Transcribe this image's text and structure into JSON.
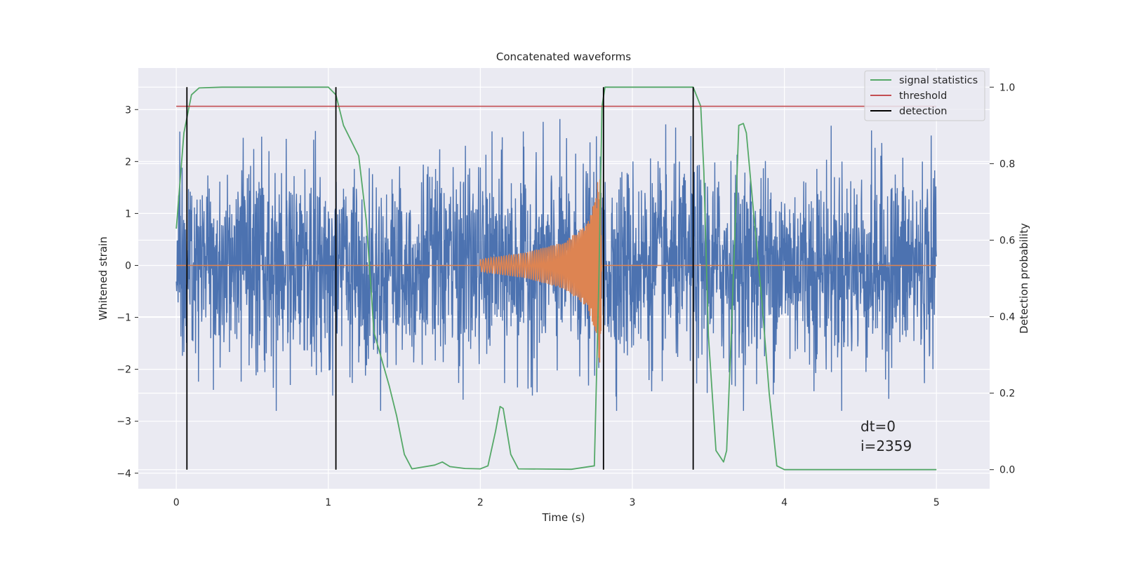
{
  "chart_data": {
    "type": "line",
    "title": "Concatenated waveforms",
    "xlabel": "Time (s)",
    "ylabel_left": "Whitened strain",
    "ylabel_right": "Detection probability",
    "xlim": [
      -0.25,
      5.35
    ],
    "ylim_left": [
      -4.3,
      3.8
    ],
    "ylim_right": [
      -0.05,
      1.05
    ],
    "x_ticks": [
      0,
      1,
      2,
      3,
      4,
      5
    ],
    "y_left_ticks": [
      -4,
      -3,
      -2,
      -1,
      0,
      1,
      2,
      3
    ],
    "y_right_ticks": [
      0.0,
      0.2,
      0.4,
      0.6,
      0.8,
      1.0
    ],
    "grid": true,
    "legend_position": "top-right",
    "background_color": "#eaeaf2",
    "series": [
      {
        "name": "",
        "kind": "noise",
        "axis": "left",
        "color": "#4c72b0",
        "x_range": [
          0,
          5
        ],
        "description_of_envelope": [
          -2.8,
          3.3
        ]
      },
      {
        "name": "",
        "kind": "chirp",
        "axis": "left",
        "color": "#dd8452",
        "points": [
          [
            0,
            0
          ],
          [
            1.99,
            0
          ],
          [
            2.0,
            0.12
          ],
          [
            2.3,
            0.25
          ],
          [
            2.55,
            0.45
          ],
          [
            2.7,
            0.8
          ],
          [
            2.76,
            1.3
          ],
          [
            2.79,
            2.1
          ],
          [
            2.8,
            0.0
          ],
          [
            5.0,
            0.0
          ]
        ]
      },
      {
        "name": "signal statistics",
        "axis": "right",
        "color": "#55a868",
        "points": [
          [
            0.0,
            0.63
          ],
          [
            0.05,
            0.88
          ],
          [
            0.1,
            0.98
          ],
          [
            0.15,
            0.998
          ],
          [
            0.3,
            1.0
          ],
          [
            1.0,
            1.0
          ],
          [
            1.05,
            0.98
          ],
          [
            1.1,
            0.9
          ],
          [
            1.2,
            0.82
          ],
          [
            1.25,
            0.65
          ],
          [
            1.28,
            0.48
          ],
          [
            1.3,
            0.36
          ],
          [
            1.4,
            0.22
          ],
          [
            1.45,
            0.14
          ],
          [
            1.5,
            0.04
          ],
          [
            1.55,
            0.002
          ],
          [
            1.7,
            0.012
          ],
          [
            1.75,
            0.02
          ],
          [
            1.8,
            0.008
          ],
          [
            1.9,
            0.003
          ],
          [
            2.0,
            0.002
          ],
          [
            2.05,
            0.01
          ],
          [
            2.1,
            0.1
          ],
          [
            2.13,
            0.165
          ],
          [
            2.15,
            0.16
          ],
          [
            2.2,
            0.04
          ],
          [
            2.25,
            0.002
          ],
          [
            2.6,
            0.001
          ],
          [
            2.75,
            0.01
          ],
          [
            2.78,
            0.5
          ],
          [
            2.8,
            0.95
          ],
          [
            2.82,
            1.0
          ],
          [
            3.4,
            1.0
          ],
          [
            3.45,
            0.95
          ],
          [
            3.47,
            0.78
          ],
          [
            3.5,
            0.35
          ],
          [
            3.55,
            0.05
          ],
          [
            3.6,
            0.02
          ],
          [
            3.62,
            0.05
          ],
          [
            3.65,
            0.35
          ],
          [
            3.7,
            0.9
          ],
          [
            3.73,
            0.905
          ],
          [
            3.75,
            0.88
          ],
          [
            3.8,
            0.66
          ],
          [
            3.85,
            0.45
          ],
          [
            3.9,
            0.2
          ],
          [
            3.95,
            0.01
          ],
          [
            4.0,
            0.0
          ],
          [
            5.0,
            0.0
          ]
        ]
      },
      {
        "name": "threshold",
        "axis": "right",
        "color": "#c44e52",
        "value": 0.95,
        "x_range": [
          0,
          5
        ]
      },
      {
        "name": "detection",
        "axis": "right",
        "color": "#000000",
        "x": [
          0.07,
          1.05,
          2.81,
          3.4
        ]
      }
    ],
    "annotations": [
      "dt=0",
      "i=2359"
    ]
  }
}
